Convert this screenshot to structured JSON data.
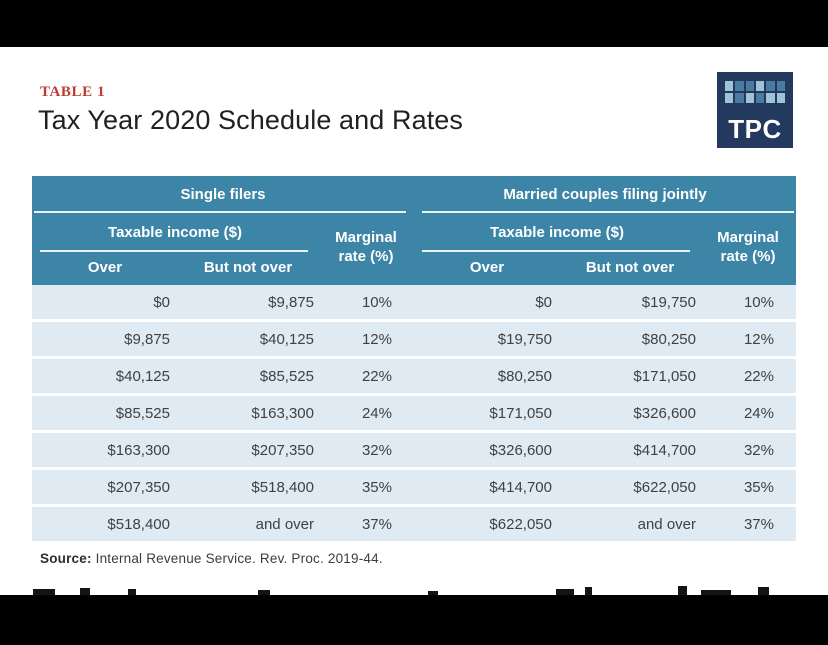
{
  "page": {
    "table_label": "TABLE 1",
    "title": "Tax Year 2020 Schedule and Rates",
    "source_label": "Source:",
    "source_text": "Internal Revenue Service. Rev. Proc. 2019-44."
  },
  "logo": {
    "text": "TPC",
    "bg_color": "#24395e",
    "square_colors": {
      "light": "#9ec4d8",
      "medium": "#4a7ba1"
    },
    "grid": [
      "light",
      "medium",
      "medium",
      "light",
      "medium",
      "medium",
      "light",
      "medium",
      "light",
      "medium",
      "light",
      "light"
    ]
  },
  "colors": {
    "header_bg": "#3d85a7",
    "row_bg": "#e0eaf3",
    "accent_red": "#c13a31",
    "body_text": "#3e4244",
    "logo_navy": "#24395e"
  },
  "chart_data": {
    "type": "table",
    "table_label": "TABLE 1",
    "title": "Tax Year 2020 Schedule and Rates",
    "source": "Source: Internal Revenue Service. Rev. Proc. 2019-44.",
    "groups": [
      {
        "label": "Single filers",
        "income_header": "Taxable income ($)",
        "col_over": "Over",
        "col_not_over": "But not over",
        "marginal_line1": "Marginal",
        "marginal_line2": "rate (%)",
        "rows": [
          {
            "over": "$0",
            "not_over": "$9,875",
            "rate": "10%"
          },
          {
            "over": "$9,875",
            "not_over": "$40,125",
            "rate": "12%"
          },
          {
            "over": "$40,125",
            "not_over": "$85,525",
            "rate": "22%"
          },
          {
            "over": "$85,525",
            "not_over": "$163,300",
            "rate": "24%"
          },
          {
            "over": "$163,300",
            "not_over": "$207,350",
            "rate": "32%"
          },
          {
            "over": "$207,350",
            "not_over": "$518,400",
            "rate": "35%"
          },
          {
            "over": "$518,400",
            "not_over": "and over",
            "rate": "37%"
          }
        ]
      },
      {
        "label": "Married couples filing jointly",
        "income_header": "Taxable income ($)",
        "col_over": "Over",
        "col_not_over": "But not over",
        "marginal_line1": "Marginal",
        "marginal_line2": "rate (%)",
        "rows": [
          {
            "over": "$0",
            "not_over": "$19,750",
            "rate": "10%"
          },
          {
            "over": "$19,750",
            "not_over": "$80,250",
            "rate": "12%"
          },
          {
            "over": "$80,250",
            "not_over": "$171,050",
            "rate": "22%"
          },
          {
            "over": "$171,050",
            "not_over": "$326,600",
            "rate": "24%"
          },
          {
            "over": "$326,600",
            "not_over": "$414,700",
            "rate": "32%"
          },
          {
            "over": "$414,700",
            "not_over": "$622,050",
            "rate": "35%"
          },
          {
            "over": "$622,050",
            "not_over": "and over",
            "rate": "37%"
          }
        ]
      }
    ]
  }
}
